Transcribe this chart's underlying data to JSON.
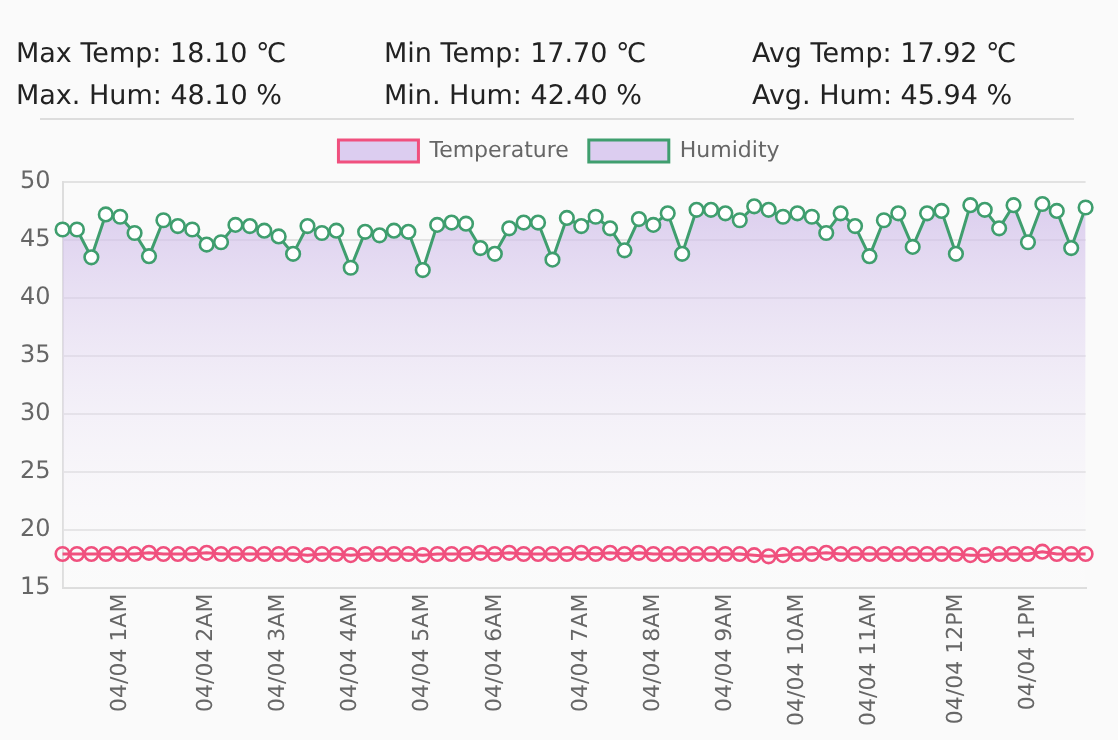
{
  "chart_data": {
    "type": "line",
    "annotations": [
      "Max Temp: 18.10 ℃",
      "Min Temp: 17.70 ℃",
      "Avg Temp: 17.92 ℃",
      "Max. Hum: 48.10 %",
      "Min. Hum: 42.40 %",
      "Avg. Hum: 45.94 %"
    ],
    "categories": [
      null,
      null,
      null,
      null,
      "04/04 1AM",
      null,
      null,
      null,
      null,
      null,
      "04/04 2AM",
      null,
      null,
      null,
      null,
      "04/04 3AM",
      null,
      null,
      null,
      null,
      "04/04 4AM",
      null,
      null,
      null,
      null,
      "04/04 5AM",
      null,
      null,
      null,
      null,
      "04/04 6AM",
      null,
      null,
      null,
      null,
      null,
      "04/04 7AM",
      null,
      null,
      null,
      null,
      "04/04 8AM",
      null,
      null,
      null,
      null,
      "04/04 9AM",
      null,
      null,
      null,
      null,
      "04/04 10AM",
      null,
      null,
      null,
      null,
      "04/04 11AM",
      null,
      null,
      null,
      null,
      null,
      "04/04 12PM",
      null,
      null,
      null,
      null,
      "04/04 1PM",
      null,
      null,
      null,
      null
    ],
    "series": [
      {
        "name": "Temperature",
        "color": "#f0507e",
        "values": [
          17.9,
          17.9,
          17.9,
          17.9,
          17.9,
          17.9,
          18.0,
          17.9,
          17.9,
          17.9,
          18.0,
          17.9,
          17.9,
          17.9,
          17.9,
          17.9,
          17.9,
          17.8,
          17.9,
          17.9,
          17.8,
          17.9,
          17.9,
          17.9,
          17.9,
          17.8,
          17.9,
          17.9,
          17.9,
          18.0,
          17.9,
          18.0,
          17.9,
          17.9,
          17.9,
          17.9,
          18.0,
          17.9,
          18.0,
          17.9,
          18.0,
          17.9,
          17.9,
          17.9,
          17.9,
          17.9,
          17.9,
          17.9,
          17.8,
          17.7,
          17.8,
          17.9,
          17.9,
          18.0,
          17.9,
          17.9,
          17.9,
          17.9,
          17.9,
          17.9,
          17.9,
          17.9,
          17.9,
          17.8,
          17.8,
          17.9,
          17.9,
          17.9,
          18.1,
          17.9,
          17.9,
          17.9
        ]
      },
      {
        "name": "Humidity",
        "color": "#3f9e6e",
        "values": [
          45.9,
          45.9,
          43.5,
          47.2,
          47.0,
          45.6,
          43.6,
          46.7,
          46.2,
          45.9,
          44.6,
          44.8,
          46.3,
          46.2,
          45.8,
          45.3,
          43.8,
          46.2,
          45.6,
          45.8,
          42.6,
          45.7,
          45.4,
          45.8,
          45.7,
          42.4,
          46.3,
          46.5,
          46.4,
          44.3,
          43.8,
          46.0,
          46.5,
          46.5,
          43.3,
          46.9,
          46.2,
          47.0,
          46.0,
          44.1,
          46.8,
          46.3,
          47.3,
          43.8,
          47.6,
          47.6,
          47.3,
          46.7,
          47.9,
          47.6,
          47.0,
          47.3,
          47.0,
          45.6,
          47.3,
          46.2,
          43.6,
          46.7,
          47.3,
          44.4,
          47.3,
          47.5,
          43.8,
          48.0,
          47.6,
          46.0,
          48.0,
          44.8,
          48.1,
          47.5,
          44.3,
          47.8
        ]
      }
    ],
    "ylim": [
      15,
      50
    ],
    "yticks": [
      15,
      20,
      25,
      30,
      35,
      40,
      45,
      50
    ],
    "grid": "y",
    "legend": "top",
    "marker": "circle",
    "line_style": "solid"
  }
}
